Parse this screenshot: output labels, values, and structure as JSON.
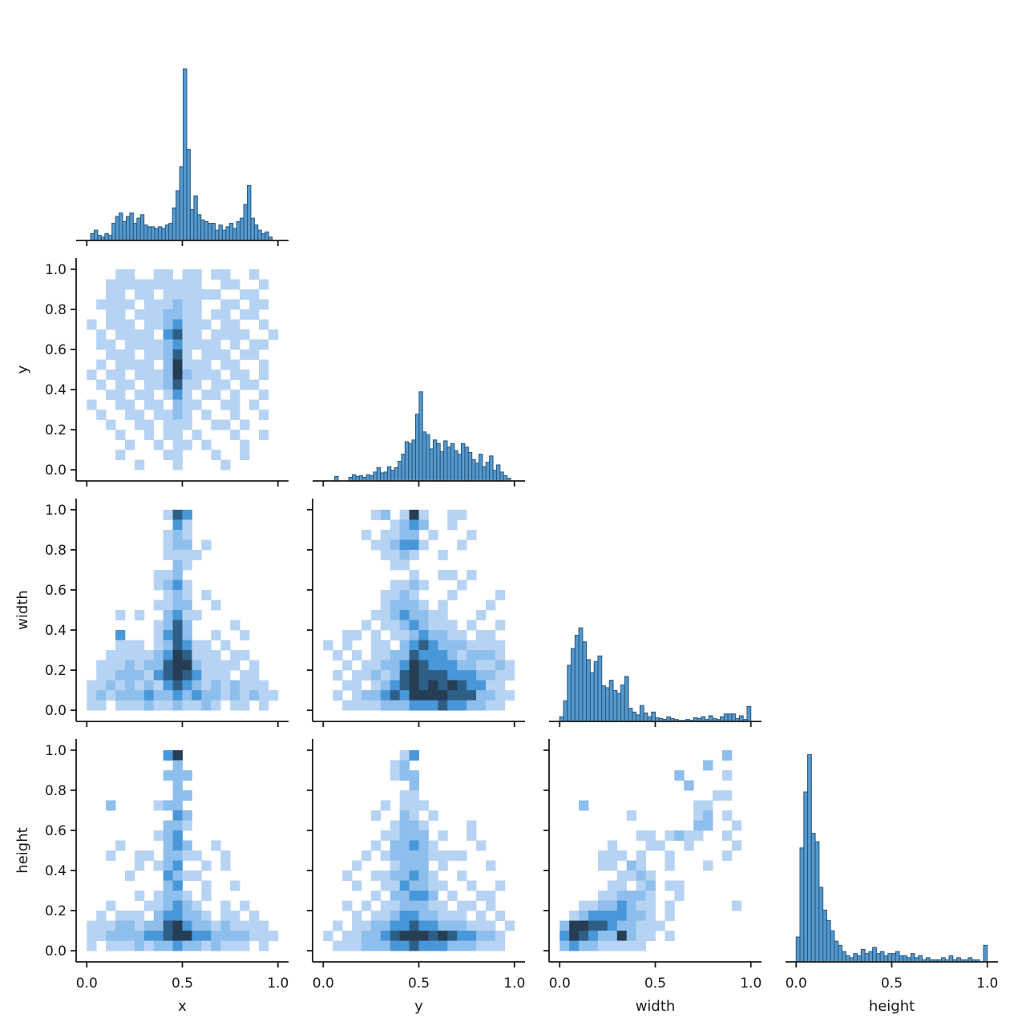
{
  "figure": {
    "background": "#ffffff",
    "kind": "seaborn-pairplot-corner"
  },
  "chart_data": {
    "type": "heatmap",
    "subtype": "pairplot-corner-grid",
    "variables": [
      "x",
      "y",
      "width",
      "height"
    ],
    "axis_range": [
      0,
      1
    ],
    "x_tick_labels": [
      "0.0",
      "0.5",
      "1.0"
    ],
    "y_tick_labels": [
      "0.0",
      "0.2",
      "0.4",
      "0.6",
      "0.8",
      "1.0"
    ],
    "bottom_axis_titles": [
      "x",
      "y",
      "width",
      "height"
    ],
    "left_axis_titles": [
      "y",
      "width",
      "height"
    ],
    "grid": "off",
    "legend": "none",
    "colors": {
      "bar_fill": "#5598cc",
      "bar_edge": "#27567e",
      "spine": "#1a1a1a",
      "text": "#1a1a1a",
      "heat_levels": [
        "#b7d3f3",
        "#8ebeec",
        "#4897d8",
        "#2e5f86",
        "#253e55"
      ]
    },
    "histograms": [
      {
        "var": "x",
        "row": 0,
        "col": 0,
        "range": [
          0.02,
          0.97
        ],
        "peak_frac": 0.77,
        "values": [
          0.04,
          0.06,
          0.03,
          0.02,
          0.04,
          0.03,
          0.1,
          0.14,
          0.16,
          0.11,
          0.14,
          0.16,
          0.1,
          0.13,
          0.15,
          0.09,
          0.08,
          0.08,
          0.07,
          0.08,
          0.07,
          0.09,
          0.1,
          0.19,
          0.29,
          0.43,
          1.0,
          0.53,
          0.18,
          0.26,
          0.15,
          0.12,
          0.11,
          0.1,
          0.1,
          0.06,
          0.09,
          0.06,
          0.08,
          0.1,
          0.07,
          0.11,
          0.13,
          0.21,
          0.32,
          0.13,
          0.09,
          0.06,
          0.04,
          0.05,
          0.02
        ]
      },
      {
        "var": "y",
        "row": 1,
        "col": 1,
        "range": [
          0.06,
          0.98
        ],
        "peak_frac": 0.4,
        "values": [
          0.05,
          0,
          0,
          0,
          0.04,
          0.07,
          0.05,
          0.06,
          0.04,
          0.07,
          0.06,
          0.1,
          0.15,
          0.09,
          0.1,
          0.16,
          0.12,
          0.15,
          0.22,
          0.3,
          0.44,
          0.42,
          0.46,
          0.75,
          1.0,
          0.55,
          0.52,
          0.36,
          0.46,
          0.42,
          0.33,
          0.45,
          0.38,
          0.42,
          0.34,
          0.3,
          0.42,
          0.38,
          0.32,
          0.24,
          0.2,
          0.3,
          0.16,
          0.21,
          0.28,
          0.12,
          0.18,
          0.1,
          0.06,
          0.03
        ]
      },
      {
        "var": "width",
        "row": 2,
        "col": 2,
        "range": [
          0.0,
          1.0
        ],
        "peak_frac": 0.42,
        "values": [
          0.05,
          0.22,
          0.6,
          0.78,
          0.92,
          1.0,
          0.85,
          0.66,
          0.52,
          0.64,
          0.7,
          0.38,
          0.36,
          0.44,
          0.33,
          0.3,
          0.39,
          0.48,
          0.14,
          0.1,
          0.07,
          0.17,
          0.09,
          0.05,
          0.1,
          0.04,
          0.03,
          0.02,
          0.05,
          0.03,
          0.02,
          0.01,
          0.01,
          0.02,
          0.01,
          0.04,
          0.03,
          0.05,
          0.02,
          0.06,
          0.03,
          0.02,
          0.05,
          0.08,
          0.08,
          0.08,
          0.03,
          0.06,
          0.02,
          0.16
        ]
      },
      {
        "var": "height",
        "row": 3,
        "col": 3,
        "range": [
          0.0,
          1.0
        ],
        "peak_frac": 0.93,
        "values": [
          0.12,
          0.55,
          0.82,
          1.0,
          0.62,
          0.58,
          0.36,
          0.25,
          0.2,
          0.15,
          0.1,
          0.08,
          0.05,
          0.03,
          0.02,
          0.04,
          0.03,
          0.06,
          0.04,
          0.05,
          0.07,
          0.04,
          0.05,
          0.03,
          0.04,
          0.04,
          0.05,
          0.03,
          0.03,
          0.02,
          0.04,
          0.02,
          0.03,
          0.01,
          0.02,
          0.01,
          0.01,
          0.01,
          0.02,
          0.01,
          0.03,
          0.01,
          0.02,
          0.01,
          0.01,
          0.02,
          0.01,
          0.01,
          0.0,
          0.08
        ]
      }
    ],
    "heatmaps": [
      {
        "xvar": "x",
        "yvar": "y",
        "row": 1,
        "col": 0,
        "levels": [
          "00011001101101100100",
          "00111111111100110010",
          "00110110111111001100",
          "01111011121100110110",
          "00110111221101101100",
          "10111011231110110010",
          "01011110341101111001",
          "01101111231111010110",
          "00111011241011101100",
          "01011110251110110010",
          "10110111252111011010",
          "01011011241101101100",
          "00110110131011010010",
          "10011011021100110100",
          "01001101121010010010",
          "00100110111001101000",
          "00010010110100010010",
          "00001001011010001000",
          "00010000110001001000",
          "00000100010000100000"
        ]
      },
      {
        "xvar": "x",
        "yvar": "width",
        "row": 2,
        "col": 0,
        "levels": [
          "00000000143000000000",
          "00000000031000000000",
          "00000000121000000000",
          "00000000122010000000",
          "00000000111100000000",
          "00000000021000000000",
          "00000001120000000000",
          "00000001231000000000",
          "00000000121010000000",
          "00000001122001000000",
          "00010100231100000000",
          "00000001242000010000",
          "00030001342001001000",
          "00011101243110100000",
          "00111112354111011000",
          "01112122455211110100",
          "01122213454311101100",
          "11212121343212121110",
          "12122232232322121211",
          "11011121121121011010"
        ]
      },
      {
        "xvar": "y",
        "yvar": "width",
        "row": 2,
        "col": 1,
        "levels": [
          "00000120151001100000",
          "00000001232001000000",
          "00001011220100010000",
          "00000112331000100000",
          "00000011210010000000",
          "00000001100000000000",
          "00000000010011010000",
          "00000001121000100000",
          "00000011210001000010",
          "00000012221010000100",
          "00000112322110001000",
          "00001011232111010010",
          "00110101123221101100",
          "10100110234322211110",
          "01010112243332122210",
          "00101122354333221121",
          "01011212454443332211",
          "00110123454545433110",
          "01012234355554442211",
          "00111122233343322110"
        ]
      },
      {
        "xvar": "x",
        "yvar": "height",
        "row": 3,
        "col": 0,
        "levels": [
          "00000000350000000000",
          "00000000020000000000",
          "00000000222000000000",
          "00000000020000000000",
          "00000000022000000000",
          "00200001220000000000",
          "00000000032000000000",
          "00000000221000000000",
          "00000001230000000000",
          "00010000232001000000",
          "00100110221100100000",
          "00000101230010100000",
          "00001000321100000000",
          "00000000230010010000",
          "00000101221010000000",
          "00100011232100101000",
          "01011102332210110100",
          "11122122453221211110",
          "11222233455332222111",
          "10111212232212111010"
        ]
      },
      {
        "xvar": "y",
        "yvar": "height",
        "row": 3,
        "col": 1,
        "levels": [
          "00000000130000000000",
          "00000001200000000000",
          "00000001220000000000",
          "00000000020000000000",
          "00000000110000000000",
          "00000010111000000000",
          "00000100210100000000",
          "00000001221000010000",
          "00000011222010010000",
          "00000102232100001000",
          "00001012222111100000",
          "00010001222010000100",
          "00100112232100100000",
          "00010011322110010010",
          "00000102233201001100",
          "00101011222110110100",
          "00010112332211101010",
          "01011223343322211101",
          "10112234555454332210",
          "01112223343332221110"
        ]
      },
      {
        "xvar": "width",
        "yvar": "height",
        "row": 3,
        "col": 2,
        "levels": [
          "00000000000000000200",
          "00000000000000020000",
          "00000000000020000100",
          "00000000000002000000",
          "00000000000000001100",
          "00200000000000110000",
          "00000001000000120100",
          "00000000000000220010",
          "00000000110121100100",
          "00000100011001000010",
          "00001110100100000100",
          "00001102100100010000",
          "00000011210000000000",
          "00000110120110000000",
          "00001122210010000000",
          "00112232110100000010",
          "01233332210100000000",
          "25544322111000000000",
          "35432252110100000000",
          "23221111100000000000"
        ]
      }
    ]
  }
}
